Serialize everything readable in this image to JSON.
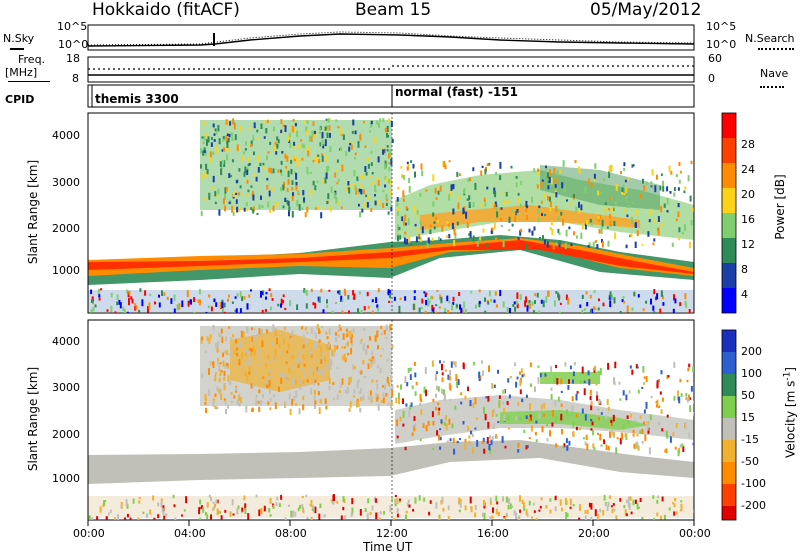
{
  "header": {
    "station": "Hokkaido (fitACF)",
    "beam": "Beam 15",
    "date": "05/May/2012"
  },
  "strip_panels": {
    "nsky_label": "N.Sky",
    "nsky_ticks": [
      "10^5",
      "10^0"
    ],
    "nsearch_label": "N.Search",
    "nsearch_ticks": [
      "10^5",
      "10^0"
    ],
    "freq_label_1": "Freq.",
    "freq_label_2": "[MHz]",
    "freq_ticks": [
      "18",
      "8"
    ],
    "nave_label": "Nave",
    "nave_ticks": [
      "60",
      "0"
    ],
    "cpid_label": "CPID",
    "cpid_segments": [
      {
        "text": "themis 3300",
        "start_ut": 0
      },
      {
        "text": "normal (fast) -151",
        "start_ut": 12
      }
    ]
  },
  "chart_data": [
    {
      "type": "heatmap",
      "name": "power",
      "ylabel": "Slant Range [km]",
      "x_ticks": [
        "00:00",
        "04:00",
        "08:00",
        "12:00",
        "16:00",
        "20:00",
        "00:00"
      ],
      "y_ticks": [
        "1000",
        "2000",
        "3000",
        "4000"
      ],
      "xlim": [
        0,
        24
      ],
      "ylim": [
        200,
        4600
      ],
      "colorbar": {
        "label": "Power [dB]",
        "ticks": [
          "4",
          "8",
          "12",
          "16",
          "20",
          "24",
          "28"
        ],
        "range": [
          0,
          30
        ],
        "colors": [
          "#0000ff",
          "#1a3fa8",
          "#2e8b57",
          "#7fcf6f",
          "#ffd21a",
          "#ff8c00",
          "#ff4000",
          "#ff0000"
        ]
      },
      "features": [
        {
          "band": "ionospheric scatter",
          "ut": [
            0,
            24
          ],
          "range_km": [
            800,
            1500
          ],
          "power_db": 24
        },
        {
          "band": "high range scatter",
          "ut": [
            5,
            12
          ],
          "range_km": [
            2500,
            4300
          ],
          "power_db": 14
        },
        {
          "band": "mid range scatter",
          "ut": [
            13,
            23
          ],
          "range_km": [
            1600,
            3300
          ],
          "power_db": 18
        }
      ]
    },
    {
      "type": "heatmap",
      "name": "velocity",
      "ylabel": "Slant Range [km]",
      "x_ticks": [
        "00:00",
        "04:00",
        "08:00",
        "12:00",
        "16:00",
        "20:00",
        "00:00"
      ],
      "xlabel": "Time UT",
      "y_ticks": [
        "1000",
        "2000",
        "3000",
        "4000"
      ],
      "xlim": [
        0,
        24
      ],
      "ylim": [
        200,
        4600
      ],
      "colorbar": {
        "label": "Velocity [m s",
        "label_sup": "-1",
        "ticks": [
          "200",
          "100",
          "50",
          "15",
          "-15",
          "-50",
          "-100",
          "-200"
        ],
        "colors": [
          "#1a2fbf",
          "#2e5fd0",
          "#2e8b57",
          "#7fcf4f",
          "#c0c0b8",
          "#f0b030",
          "#ff8c00",
          "#ff4000",
          "#e00000"
        ]
      },
      "features": [
        {
          "band": "ground scatter",
          "ut": [
            0,
            24
          ],
          "range_km": [
            800,
            1500
          ],
          "velocity": 0
        },
        {
          "band": "high range scatter",
          "ut": [
            5,
            12
          ],
          "range_km": [
            2500,
            4300
          ],
          "velocity": -40
        },
        {
          "band": "mid range scatter",
          "ut": [
            13,
            23
          ],
          "range_km": [
            1600,
            3300
          ],
          "velocity": 30
        }
      ]
    }
  ]
}
